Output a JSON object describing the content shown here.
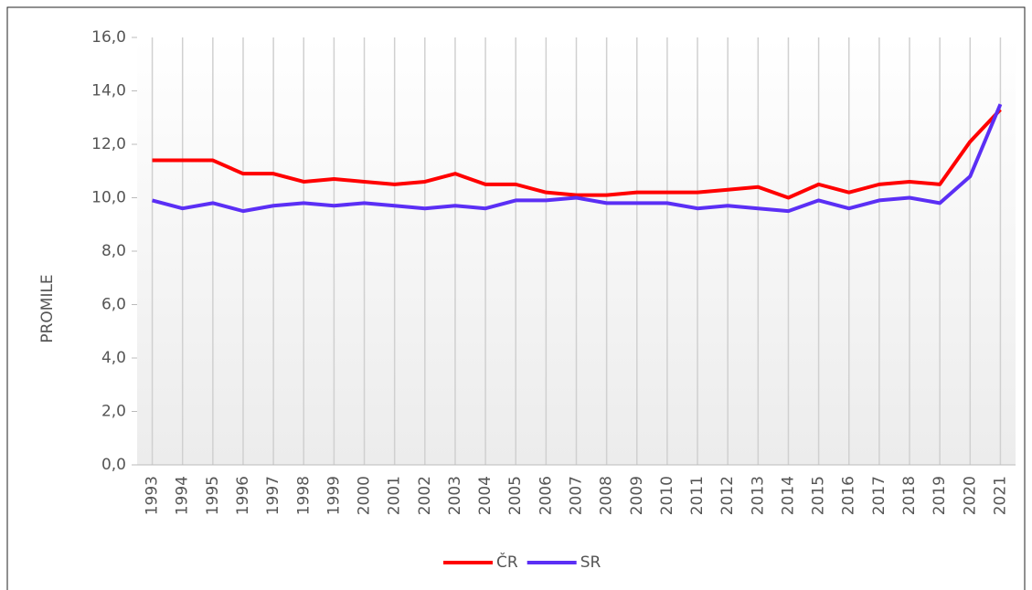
{
  "chart_data": {
    "type": "line",
    "y_label": "PROMILE",
    "categories": [
      "1993",
      "1994",
      "1995",
      "1996",
      "1997",
      "1998",
      "1999",
      "2000",
      "2001",
      "2002",
      "2003",
      "2004",
      "2005",
      "2006",
      "2007",
      "2008",
      "2009",
      "2010",
      "2011",
      "2012",
      "2013",
      "2014",
      "2015",
      "2016",
      "2017",
      "2018",
      "2019",
      "2020",
      "2021"
    ],
    "series": [
      {
        "name": "ČR",
        "color": "#ff0000",
        "values": [
          11.4,
          11.4,
          11.4,
          10.9,
          10.9,
          10.6,
          10.7,
          10.6,
          10.5,
          10.6,
          10.9,
          10.5,
          10.5,
          10.2,
          10.1,
          10.1,
          10.2,
          10.2,
          10.2,
          10.3,
          10.4,
          10.0,
          10.5,
          10.2,
          10.5,
          10.6,
          10.5,
          12.1,
          13.3
        ]
      },
      {
        "name": "SR",
        "color": "#5b2ff5",
        "values": [
          9.9,
          9.6,
          9.8,
          9.5,
          9.7,
          9.8,
          9.7,
          9.8,
          9.7,
          9.6,
          9.7,
          9.6,
          9.9,
          9.9,
          10.0,
          9.8,
          9.8,
          9.8,
          9.6,
          9.7,
          9.6,
          9.5,
          9.9,
          9.6,
          9.9,
          10.0,
          9.8,
          10.8,
          13.5
        ]
      }
    ],
    "ylim": [
      0,
      16
    ],
    "yticks": [
      {
        "value": 0,
        "label": "0,0"
      },
      {
        "value": 2,
        "label": "2,0"
      },
      {
        "value": 4,
        "label": "4,0"
      },
      {
        "value": 6,
        "label": "6,0"
      },
      {
        "value": 8,
        "label": "8,0"
      },
      {
        "value": 10,
        "label": "10,0"
      },
      {
        "value": 12,
        "label": "12,0"
      },
      {
        "value": 14,
        "label": "14,0"
      },
      {
        "value": 16,
        "label": "16,0"
      }
    ],
    "grid": true,
    "legend": "bottom"
  }
}
